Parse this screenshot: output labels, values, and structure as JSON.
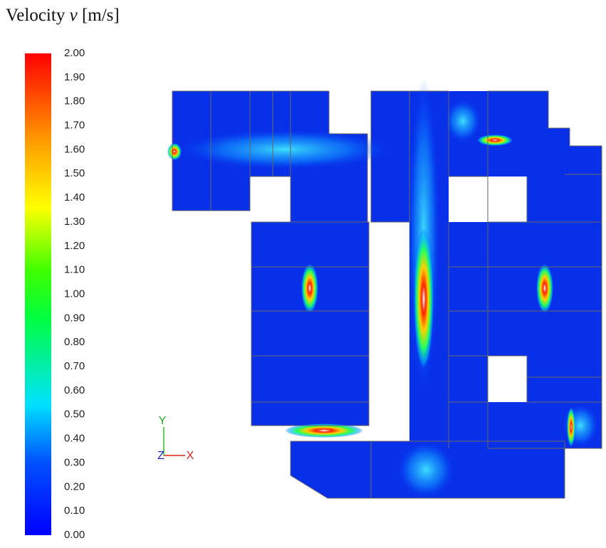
{
  "title": {
    "name": "Velocity",
    "symbol": "v",
    "unit": "[m/s]"
  },
  "colorbar": {
    "ticks": [
      "2.00",
      "1.90",
      "1.80",
      "1.70",
      "1.60",
      "1.50",
      "1.40",
      "1.30",
      "1.20",
      "1.10",
      "1.00",
      "0.90",
      "0.80",
      "0.70",
      "0.60",
      "0.50",
      "0.40",
      "0.30",
      "0.20",
      "0.10",
      "0.00"
    ]
  },
  "axes": {
    "y": "Y",
    "z": "Z",
    "x": "X"
  }
}
